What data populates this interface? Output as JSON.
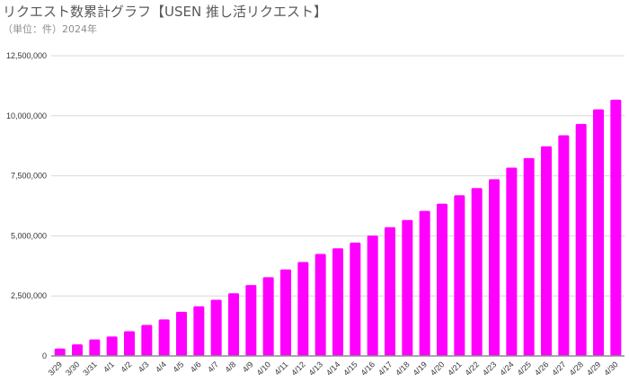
{
  "chart_data": {
    "type": "bar",
    "title": "リクエスト数累計グラフ【USEN 推し活リクエスト】",
    "subtitle": "（単位：件）2024年",
    "xlabel": "",
    "ylabel": "",
    "ylim": [
      0,
      12500000
    ],
    "yticks": [
      "0",
      "2,500,000",
      "5,000,000",
      "7,500,000",
      "10,000,000",
      "12,500,000"
    ],
    "grid": true,
    "bar_color": "#ff00ff",
    "categories": [
      "3/29",
      "3/30",
      "3/31",
      "4/1",
      "4/2",
      "4/3",
      "4/4",
      "4/5",
      "4/6",
      "4/7",
      "4/8",
      "4/9",
      "4/10",
      "4/11",
      "4/12",
      "4/13",
      "4/14",
      "4/15",
      "4/16",
      "4/17",
      "4/18",
      "4/19",
      "4/20",
      "4/21",
      "4/22",
      "4/23",
      "4/24",
      "4/25",
      "4/26",
      "4/27",
      "4/28",
      "4/29",
      "4/30"
    ],
    "values": [
      310000,
      480000,
      690000,
      810000,
      1030000,
      1290000,
      1520000,
      1840000,
      2070000,
      2340000,
      2610000,
      2950000,
      3280000,
      3600000,
      3910000,
      4250000,
      4480000,
      4720000,
      5010000,
      5360000,
      5660000,
      6040000,
      6340000,
      6690000,
      6990000,
      7360000,
      7840000,
      8240000,
      8730000,
      9190000,
      9660000,
      10270000,
      10670000
    ]
  }
}
